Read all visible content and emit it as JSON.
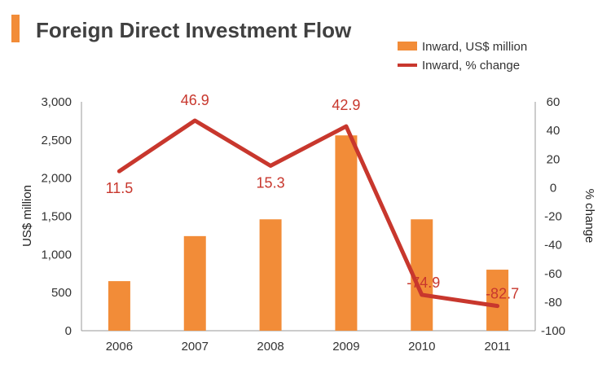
{
  "chart_data": {
    "type": "bar",
    "title": "Foreign Direct Investment Flow",
    "categories": [
      "2006",
      "2007",
      "2008",
      "2009",
      "2010",
      "2011"
    ],
    "series": [
      {
        "name": "Inward, US$ million",
        "kind": "bar",
        "axis": "left",
        "values": [
          650,
          1240,
          1460,
          2560,
          1460,
          800
        ]
      },
      {
        "name": "Inward, % change",
        "kind": "line",
        "axis": "right",
        "values": [
          11.5,
          46.9,
          15.3,
          42.9,
          -74.9,
          -82.7
        ],
        "labels": [
          "11.5",
          "46.9",
          "15.3",
          "42.9",
          "-74.9",
          "-82.7"
        ]
      }
    ],
    "ylabel": "US$ million",
    "ylim": [
      0,
      3000
    ],
    "yticks": [
      "0",
      "500",
      "1,000",
      "1,500",
      "2,000",
      "2,500",
      "3,000"
    ],
    "y2label": "% change",
    "y2lim": [
      -100,
      60
    ],
    "y2ticks": [
      "-100",
      "-80",
      "-60",
      "-40",
      "-20",
      "0",
      "20",
      "40",
      "60"
    ],
    "legend_position": "top-right",
    "grid": false
  },
  "colors": {
    "bar": "#F28C38",
    "line": "#C8372D",
    "accent": "#F28C38",
    "axis": "#999999"
  }
}
